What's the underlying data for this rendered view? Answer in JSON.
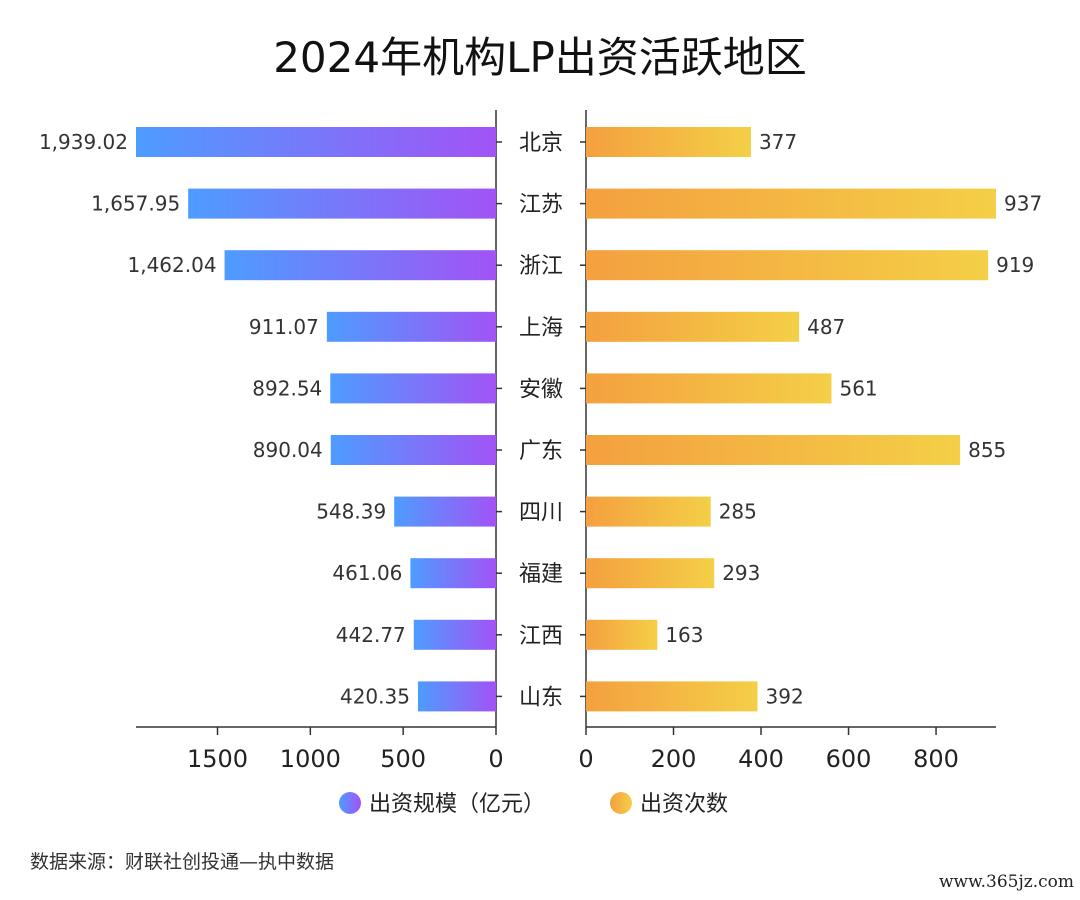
{
  "chart_data": {
    "type": "bar",
    "title": "2024年机构LP出资活跃地区",
    "categories": [
      "北京",
      "江苏",
      "浙江",
      "上海",
      "安徽",
      "广东",
      "四川",
      "福建",
      "江西",
      "山东"
    ],
    "series": [
      {
        "name": "出资规模（亿元）",
        "values": [
          1939.02,
          1657.95,
          1462.04,
          911.07,
          892.54,
          890.04,
          548.39,
          461.06,
          442.77,
          420.35
        ],
        "labels": [
          "1,939.02",
          "1,657.95",
          "1,462.04",
          "911.07",
          "892.54",
          "890.04",
          "548.39",
          "461.06",
          "442.77",
          "420.35"
        ],
        "color_from": "#4e9cff",
        "color_to": "#a253f5"
      },
      {
        "name": "出资次数",
        "values": [
          377,
          937,
          919,
          487,
          561,
          855,
          285,
          293,
          163,
          392
        ],
        "labels": [
          "377",
          "937",
          "919",
          "487",
          "561",
          "855",
          "285",
          "293",
          "163",
          "392"
        ],
        "color_from": "#f4a03f",
        "color_to": "#f4cf47"
      }
    ],
    "left_axis": {
      "ticks": [
        1500,
        1000,
        500,
        0
      ],
      "range": [
        0,
        1939.02
      ]
    },
    "right_axis": {
      "ticks": [
        0,
        200,
        400,
        600,
        800
      ],
      "range": [
        0,
        937
      ]
    },
    "legend_position": "bottom",
    "grid": false
  },
  "footer": {
    "source": "数据来源：财联社创投通—执中数据",
    "watermark": "www.365jz.com"
  }
}
